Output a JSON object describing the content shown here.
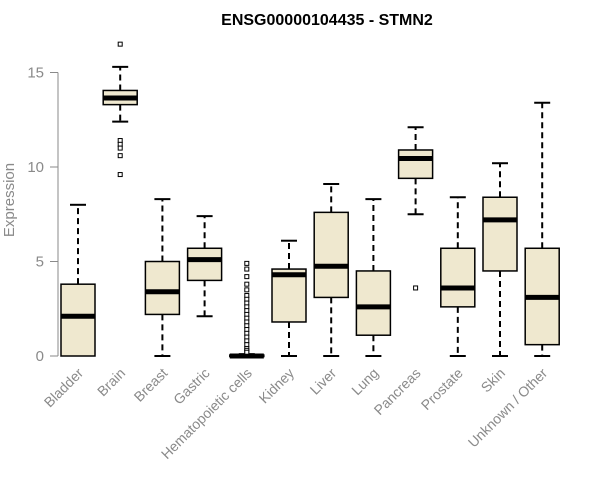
{
  "chart_data": {
    "type": "boxplot",
    "title": "ENSG00000104435 - STMN2",
    "xlabel": "",
    "ylabel": "Expression",
    "ylim": [
      0,
      17
    ],
    "yticks": [
      0,
      5,
      10,
      15
    ],
    "grid": false,
    "colors": {
      "box_fill": "#efe8cf",
      "stroke": "#000000",
      "axis_text": "#8a8a8a"
    },
    "categories": [
      "Bladder",
      "Brain",
      "Breast",
      "Gastric",
      "Hematopoietic cells",
      "Kidney",
      "Liver",
      "Lung",
      "Pancreas",
      "Prostate",
      "Skin",
      "Unknown / Other"
    ],
    "boxes": [
      {
        "label": "Bladder",
        "min": 0,
        "q1": 0,
        "median": 2.1,
        "q3": 3.8,
        "max": 8.0,
        "outliers": []
      },
      {
        "label": "Brain",
        "min": 12.4,
        "q1": 13.3,
        "median": 13.65,
        "q3": 14.05,
        "max": 15.3,
        "outliers": [
          16.5,
          11.4,
          11.2,
          11.0,
          10.6,
          9.6
        ]
      },
      {
        "label": "Breast",
        "min": 0,
        "q1": 2.2,
        "median": 3.4,
        "q3": 5.0,
        "max": 8.3,
        "outliers": []
      },
      {
        "label": "Gastric",
        "min": 2.1,
        "q1": 4.0,
        "median": 5.1,
        "q3": 5.7,
        "max": 7.4,
        "outliers": []
      },
      {
        "label": "Hematopoietic cells",
        "min": 0,
        "q1": 0,
        "median": 0,
        "q3": 0.05,
        "max": 0.1,
        "outliers": [
          4.9,
          4.6,
          4.2,
          3.8,
          3.5,
          3.2,
          3.0,
          2.8,
          2.6,
          2.4,
          2.2,
          2.0,
          1.8,
          1.6,
          1.4,
          1.2,
          1.0,
          0.8,
          0.6,
          0.4,
          0.3,
          0.2
        ]
      },
      {
        "label": "Kidney",
        "min": 0,
        "q1": 1.8,
        "median": 4.3,
        "q3": 4.6,
        "max": 6.1,
        "outliers": []
      },
      {
        "label": "Liver",
        "min": 0,
        "q1": 3.1,
        "median": 4.75,
        "q3": 7.6,
        "max": 9.1,
        "outliers": []
      },
      {
        "label": "Lung",
        "min": 0,
        "q1": 1.1,
        "median": 2.6,
        "q3": 4.5,
        "max": 8.3,
        "outliers": []
      },
      {
        "label": "Pancreas",
        "min": 7.5,
        "q1": 9.4,
        "median": 10.45,
        "q3": 10.9,
        "max": 12.1,
        "outliers": [
          3.6
        ]
      },
      {
        "label": "Prostate",
        "min": 0,
        "q1": 2.6,
        "median": 3.6,
        "q3": 5.7,
        "max": 8.4,
        "outliers": []
      },
      {
        "label": "Skin",
        "min": 0,
        "q1": 4.5,
        "median": 7.2,
        "q3": 8.4,
        "max": 10.2,
        "outliers": []
      },
      {
        "label": "Unknown / Other",
        "min": 0,
        "q1": 0.6,
        "median": 3.1,
        "q3": 5.7,
        "max": 13.4,
        "outliers": []
      }
    ]
  }
}
